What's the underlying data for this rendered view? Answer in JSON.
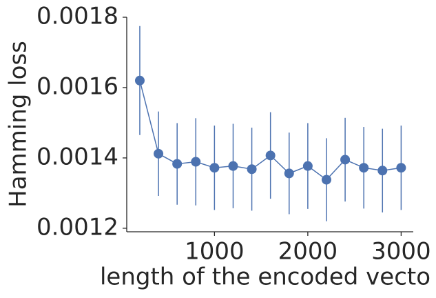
{
  "chart_data": {
    "type": "line",
    "x_label": "length of the encoded vecto",
    "y_label": "Hamming loss",
    "x": [
      200,
      400,
      600,
      800,
      1000,
      1200,
      1400,
      1600,
      1800,
      2000,
      2200,
      2400,
      2600,
      2800,
      3000
    ],
    "series": [
      {
        "name": "Hamming loss",
        "color": "#4c72b0",
        "values": [
          0.00162,
          0.001412,
          0.001383,
          0.001389,
          0.001372,
          0.001377,
          0.001368,
          0.001407,
          0.001356,
          0.001377,
          0.001338,
          0.001395,
          0.001372,
          0.001364,
          0.001372
        ],
        "errors": [
          0.000155,
          0.00012,
          0.000116,
          0.000124,
          0.00012,
          0.00012,
          0.000118,
          0.000123,
          0.000116,
          0.000122,
          0.000118,
          0.000119,
          0.000116,
          0.000119,
          0.00012
        ]
      }
    ],
    "xlim": [
      60,
      3130
    ],
    "ylim": [
      0.00119,
      0.0018
    ],
    "xticks": [
      1000,
      2000,
      3000
    ],
    "yticks": [
      0.0012,
      0.0014,
      0.0016,
      0.0018
    ]
  }
}
